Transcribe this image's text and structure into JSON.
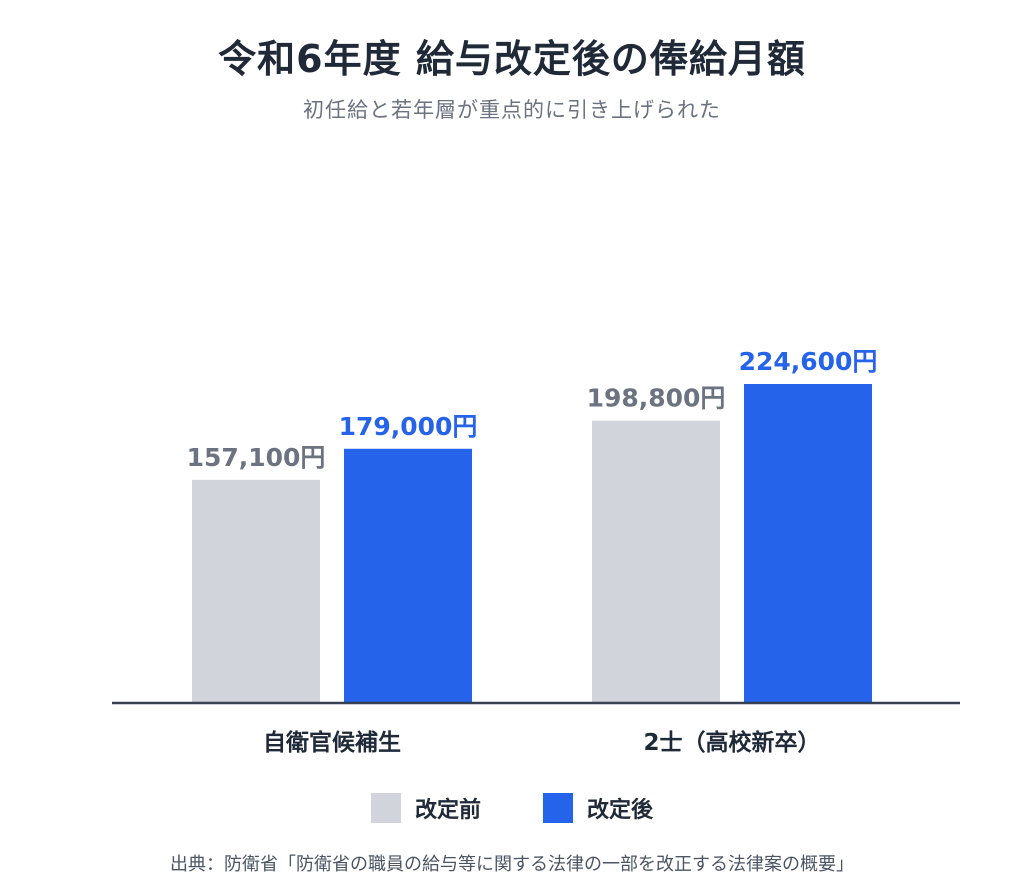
{
  "title": "令和6年度 給与改定後の俸給月額",
  "subtitle": "初任給と若年層が重点的に引き上げられた",
  "source": "出典：防衛省「防衛省の職員の給与等に関する法律の一部を改正する法律案の概要」",
  "colors": {
    "before": "#d1d5db",
    "after": "#2563eb",
    "axis": "#374151",
    "text": "#1f2937",
    "before_label": "#6b7280"
  },
  "chart_data": {
    "type": "bar",
    "title": "令和6年度 給与改定後の俸給月額",
    "subtitle": "初任給と若年層が重点的に引き上げられた",
    "categories": [
      "自衛官候補生",
      "2士（高校新卒）"
    ],
    "series": [
      {
        "name": "改定前",
        "values": [
          157100,
          198800
        ],
        "labels": [
          "157,100円",
          "198,800円"
        ]
      },
      {
        "name": "改定後",
        "values": [
          179000,
          224600
        ],
        "labels": [
          "179,000円",
          "224,600円"
        ]
      }
    ],
    "ylim": [
      0,
      224600
    ],
    "grid": false,
    "legend_position": "bottom"
  },
  "legend": [
    {
      "label": "改定前",
      "color": "#d1d5db"
    },
    {
      "label": "改定後",
      "color": "#2563eb"
    }
  ]
}
